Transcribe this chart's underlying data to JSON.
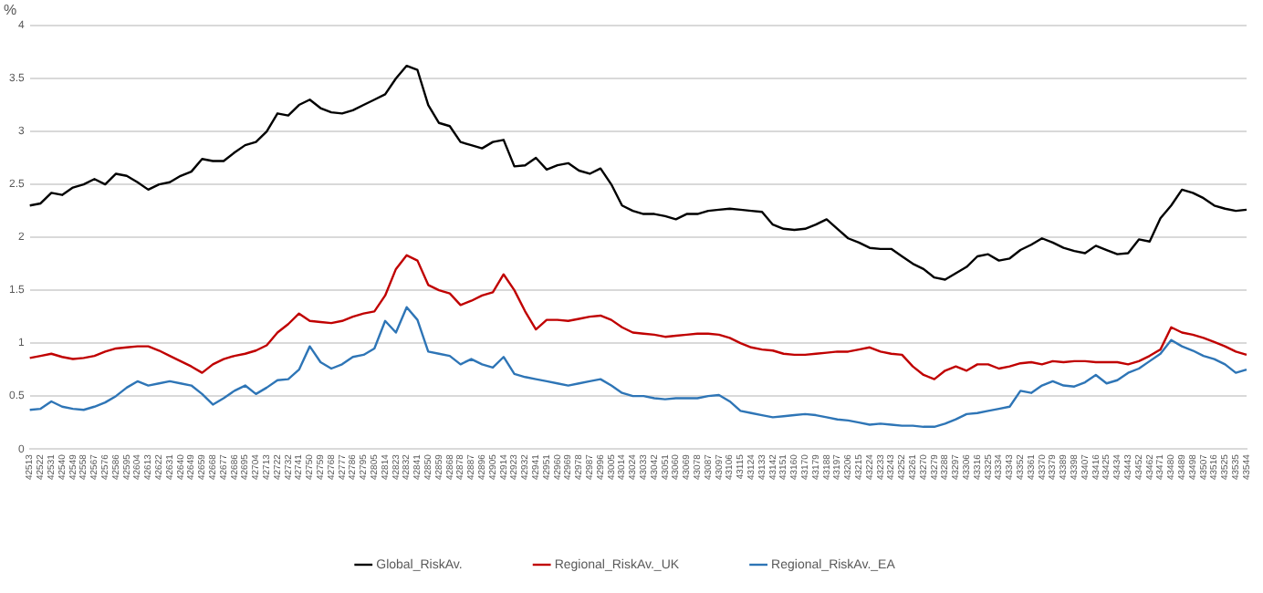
{
  "chart_data": {
    "type": "line",
    "ylabel": "%",
    "categories": [
      "42513",
      "42522",
      "42531",
      "42540",
      "42549",
      "42558",
      "42567",
      "42576",
      "42586",
      "42595",
      "42604",
      "42613",
      "42622",
      "42631",
      "42640",
      "42649",
      "42659",
      "42668",
      "42677",
      "42686",
      "42695",
      "42704",
      "42713",
      "42722",
      "42732",
      "42741",
      "42750",
      "42759",
      "42768",
      "42777",
      "42786",
      "42795",
      "42805",
      "42814",
      "42823",
      "42832",
      "42841",
      "42850",
      "42859",
      "42868",
      "42878",
      "42887",
      "42896",
      "42905",
      "42914",
      "42923",
      "42932",
      "42941",
      "42951",
      "42960",
      "42969",
      "42978",
      "42987",
      "42996",
      "43005",
      "43014",
      "43024",
      "43033",
      "43042",
      "43051",
      "43060",
      "43069",
      "43078",
      "43087",
      "43097",
      "43106",
      "43115",
      "43124",
      "43133",
      "43142",
      "43151",
      "43160",
      "43170",
      "43179",
      "43188",
      "43197",
      "43206",
      "43215",
      "43224",
      "43233",
      "43243",
      "43252",
      "43261",
      "43270",
      "43279",
      "43288",
      "43297",
      "43306",
      "43316",
      "43325",
      "43334",
      "43343",
      "43352",
      "43361",
      "43370",
      "43379",
      "43389",
      "43398",
      "43407",
      "43416",
      "43425",
      "43434",
      "43443",
      "43452",
      "43462",
      "43471",
      "43480",
      "43489",
      "43498",
      "43507",
      "43516",
      "43525",
      "43535",
      "43544"
    ],
    "series": [
      {
        "name": "Global_RiskAv.",
        "color": "#000000",
        "values": [
          2.3,
          2.32,
          2.42,
          2.4,
          2.47,
          2.5,
          2.55,
          2.5,
          2.6,
          2.58,
          2.52,
          2.45,
          2.5,
          2.52,
          2.58,
          2.62,
          2.74,
          2.72,
          2.72,
          2.8,
          2.87,
          2.9,
          3.0,
          3.17,
          3.15,
          3.25,
          3.3,
          3.22,
          3.18,
          3.17,
          3.2,
          3.25,
          3.3,
          3.35,
          3.5,
          3.62,
          3.58,
          3.25,
          3.08,
          3.05,
          2.9,
          2.87,
          2.84,
          2.9,
          2.92,
          2.67,
          2.68,
          2.75,
          2.64,
          2.68,
          2.7,
          2.63,
          2.6,
          2.65,
          2.5,
          2.3,
          2.25,
          2.22,
          2.22,
          2.2,
          2.17,
          2.22,
          2.22,
          2.25,
          2.26,
          2.27,
          2.26,
          2.25,
          2.24,
          2.12,
          2.08,
          2.07,
          2.08,
          2.12,
          2.17,
          2.08,
          1.99,
          1.95,
          1.9,
          1.89,
          1.89,
          1.82,
          1.75,
          1.7,
          1.62,
          1.6,
          1.66,
          1.72,
          1.82,
          1.84,
          1.78,
          1.8,
          1.88,
          1.93,
          1.99,
          1.95,
          1.9,
          1.87,
          1.85,
          1.92,
          1.88,
          1.84,
          1.85,
          1.98,
          1.96,
          2.18,
          2.3,
          2.45,
          2.42,
          2.37,
          2.3,
          2.27,
          2.25,
          2.26
        ]
      },
      {
        "name": "Regional_RiskAv._UK",
        "color": "#c00000",
        "values": [
          0.86,
          0.88,
          0.9,
          0.87,
          0.85,
          0.86,
          0.88,
          0.92,
          0.95,
          0.96,
          0.97,
          0.97,
          0.93,
          0.88,
          0.83,
          0.78,
          0.72,
          0.8,
          0.85,
          0.88,
          0.9,
          0.93,
          0.98,
          1.1,
          1.18,
          1.28,
          1.21,
          1.2,
          1.19,
          1.21,
          1.25,
          1.28,
          1.3,
          1.45,
          1.7,
          1.83,
          1.78,
          1.55,
          1.5,
          1.47,
          1.36,
          1.4,
          1.45,
          1.48,
          1.65,
          1.5,
          1.3,
          1.13,
          1.22,
          1.22,
          1.21,
          1.23,
          1.25,
          1.26,
          1.22,
          1.15,
          1.1,
          1.09,
          1.08,
          1.06,
          1.07,
          1.08,
          1.09,
          1.09,
          1.08,
          1.05,
          1.0,
          0.96,
          0.94,
          0.93,
          0.9,
          0.89,
          0.89,
          0.9,
          0.91,
          0.92,
          0.92,
          0.94,
          0.96,
          0.92,
          0.9,
          0.89,
          0.78,
          0.7,
          0.66,
          0.74,
          0.78,
          0.74,
          0.8,
          0.8,
          0.76,
          0.78,
          0.81,
          0.82,
          0.8,
          0.83,
          0.82,
          0.83,
          0.83,
          0.82,
          0.82,
          0.82,
          0.8,
          0.83,
          0.88,
          0.94,
          1.15,
          1.1,
          1.08,
          1.05,
          1.01,
          0.97,
          0.92,
          0.89
        ]
      },
      {
        "name": "Regional_RiskAv._EA",
        "color": "#2e75b6",
        "values": [
          0.37,
          0.38,
          0.45,
          0.4,
          0.38,
          0.37,
          0.4,
          0.44,
          0.5,
          0.58,
          0.64,
          0.6,
          0.62,
          0.64,
          0.62,
          0.6,
          0.52,
          0.42,
          0.48,
          0.55,
          0.6,
          0.52,
          0.58,
          0.65,
          0.66,
          0.75,
          0.97,
          0.82,
          0.76,
          0.8,
          0.87,
          0.89,
          0.95,
          1.21,
          1.1,
          1.34,
          1.22,
          0.92,
          0.9,
          0.88,
          0.8,
          0.85,
          0.8,
          0.77,
          0.87,
          0.71,
          0.68,
          0.66,
          0.64,
          0.62,
          0.6,
          0.62,
          0.64,
          0.66,
          0.6,
          0.53,
          0.5,
          0.5,
          0.48,
          0.47,
          0.48,
          0.48,
          0.48,
          0.5,
          0.51,
          0.45,
          0.36,
          0.34,
          0.32,
          0.3,
          0.31,
          0.32,
          0.33,
          0.32,
          0.3,
          0.28,
          0.27,
          0.25,
          0.23,
          0.24,
          0.23,
          0.22,
          0.22,
          0.21,
          0.21,
          0.24,
          0.28,
          0.33,
          0.34,
          0.36,
          0.38,
          0.4,
          0.55,
          0.53,
          0.6,
          0.64,
          0.6,
          0.59,
          0.63,
          0.7,
          0.62,
          0.65,
          0.72,
          0.76,
          0.83,
          0.9,
          1.03,
          0.97,
          0.93,
          0.88,
          0.85,
          0.8,
          0.72,
          0.75
        ]
      }
    ],
    "ylim": [
      0,
      4
    ],
    "yticks": [
      0,
      0.5,
      1,
      1.5,
      2,
      2.5,
      3,
      3.5,
      4
    ],
    "grid": "y",
    "legend": "bottom",
    "marker": "none",
    "line_style": "solid"
  }
}
